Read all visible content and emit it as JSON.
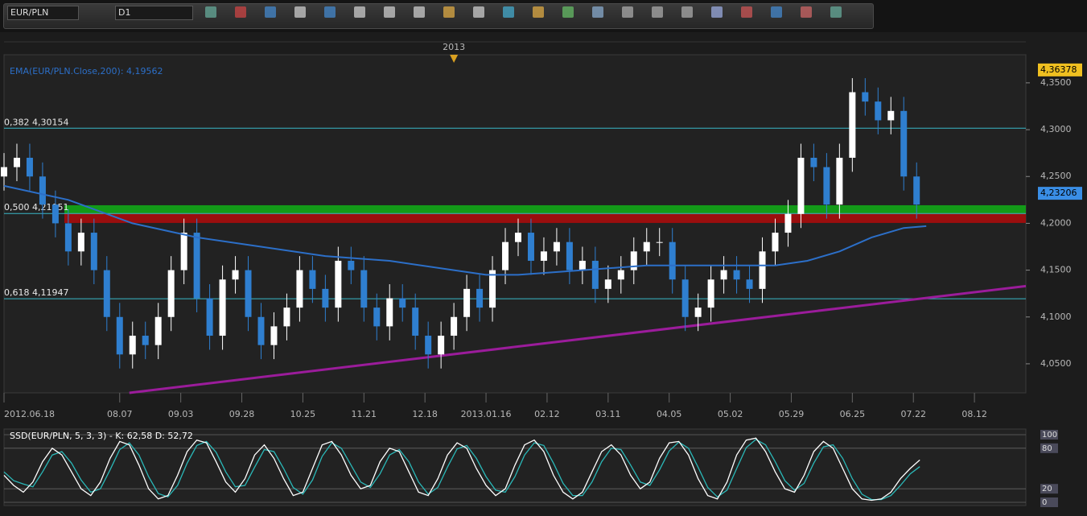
{
  "toolbar": {
    "symbol": "EUR/PLN",
    "timeframe": "D1"
  },
  "chart_data": [
    {
      "type": "candlestick",
      "x": [
        0,
        4,
        8,
        12,
        16,
        20,
        24,
        28,
        32,
        36,
        40,
        44,
        48,
        52,
        56,
        60,
        64,
        68,
        72,
        76,
        80,
        84,
        88,
        92,
        96,
        100,
        104,
        108,
        112,
        116,
        120,
        124,
        128,
        132,
        136,
        140,
        144,
        148,
        152,
        156,
        160,
        164,
        168,
        172,
        176,
        180,
        184,
        188,
        192,
        196,
        200,
        204,
        208,
        212,
        216,
        220,
        224,
        228,
        232,
        236,
        240,
        244,
        248,
        252,
        256,
        260,
        264,
        268,
        272,
        276,
        280,
        284
      ],
      "open": [
        4.25,
        4.26,
        4.27,
        4.25,
        4.22,
        4.2,
        4.17,
        4.19,
        4.15,
        4.1,
        4.06,
        4.08,
        4.07,
        4.1,
        4.15,
        4.19,
        4.12,
        4.08,
        4.14,
        4.15,
        4.1,
        4.07,
        4.09,
        4.11,
        4.15,
        4.13,
        4.11,
        4.16,
        4.15,
        4.11,
        4.09,
        4.12,
        4.11,
        4.08,
        4.06,
        4.08,
        4.1,
        4.13,
        4.11,
        4.15,
        4.18,
        4.19,
        4.16,
        4.17,
        4.18,
        4.15,
        4.16,
        4.13,
        4.14,
        4.15,
        4.17,
        4.18,
        4.18,
        4.14,
        4.1,
        4.11,
        4.14,
        4.15,
        4.14,
        4.13,
        4.17,
        4.19,
        4.21,
        4.27,
        4.26,
        4.22,
        4.27,
        4.34,
        4.33,
        4.31,
        4.32,
        4.25
      ],
      "high": [
        4.275,
        4.285,
        4.285,
        4.265,
        4.235,
        4.215,
        4.205,
        4.205,
        4.165,
        4.115,
        4.095,
        4.095,
        4.115,
        4.165,
        4.205,
        4.205,
        4.135,
        4.155,
        4.165,
        4.165,
        4.115,
        4.105,
        4.125,
        4.165,
        4.165,
        4.145,
        4.175,
        4.175,
        4.165,
        4.125,
        4.135,
        4.135,
        4.125,
        4.095,
        4.095,
        4.115,
        4.145,
        4.145,
        4.165,
        4.195,
        4.205,
        4.205,
        4.185,
        4.195,
        4.195,
        4.175,
        4.175,
        4.155,
        4.165,
        4.185,
        4.195,
        4.195,
        4.195,
        4.155,
        4.125,
        4.155,
        4.165,
        4.165,
        4.155,
        4.185,
        4.205,
        4.225,
        4.285,
        4.285,
        4.275,
        4.285,
        4.355,
        4.355,
        4.345,
        4.335,
        4.335,
        4.265
      ],
      "low": [
        4.235,
        4.245,
        4.235,
        4.205,
        4.185,
        4.155,
        4.155,
        4.135,
        4.085,
        4.045,
        4.045,
        4.055,
        4.055,
        4.085,
        4.135,
        4.105,
        4.065,
        4.065,
        4.125,
        4.085,
        4.055,
        4.055,
        4.075,
        4.095,
        4.115,
        4.095,
        4.095,
        4.135,
        4.095,
        4.075,
        4.075,
        4.095,
        4.065,
        4.045,
        4.045,
        4.065,
        4.085,
        4.095,
        4.095,
        4.135,
        4.165,
        4.145,
        4.145,
        4.155,
        4.135,
        4.135,
        4.115,
        4.115,
        4.125,
        4.135,
        4.155,
        4.165,
        4.125,
        4.085,
        4.085,
        4.095,
        4.125,
        4.125,
        4.115,
        4.115,
        4.155,
        4.175,
        4.195,
        4.245,
        4.205,
        4.205,
        4.255,
        4.315,
        4.295,
        4.295,
        4.235,
        4.205
      ],
      "close": [
        4.26,
        4.27,
        4.25,
        4.22,
        4.2,
        4.17,
        4.19,
        4.15,
        4.1,
        4.06,
        4.08,
        4.07,
        4.1,
        4.15,
        4.19,
        4.12,
        4.08,
        4.14,
        4.15,
        4.1,
        4.07,
        4.09,
        4.11,
        4.15,
        4.13,
        4.11,
        4.16,
        4.15,
        4.11,
        4.09,
        4.12,
        4.11,
        4.08,
        4.06,
        4.08,
        4.1,
        4.13,
        4.11,
        4.15,
        4.18,
        4.19,
        4.16,
        4.17,
        4.18,
        4.15,
        4.16,
        4.13,
        4.14,
        4.15,
        4.17,
        4.18,
        4.18,
        4.14,
        4.1,
        4.11,
        4.14,
        4.15,
        4.14,
        4.13,
        4.17,
        4.19,
        4.21,
        4.27,
        4.26,
        4.22,
        4.27,
        4.34,
        4.33,
        4.31,
        4.32,
        4.25,
        4.22
      ],
      "up_color": "#ffffff",
      "down_color": "#2f7fd0",
      "xlim": [
        0,
        318
      ],
      "ylim": [
        4.019,
        4.38
      ],
      "xticks": [
        {
          "value": 0,
          "label": "2012.06.18"
        },
        {
          "value": 36,
          "label": "08.07"
        },
        {
          "value": 55,
          "label": "09.03"
        },
        {
          "value": 74,
          "label": "09.28"
        },
        {
          "value": 93,
          "label": "10.25"
        },
        {
          "value": 112,
          "label": "11.21"
        },
        {
          "value": 131,
          "label": "12.18"
        },
        {
          "value": 150,
          "label": "2013.01.16"
        },
        {
          "value": 169,
          "label": "02.12"
        },
        {
          "value": 188,
          "label": "03.11"
        },
        {
          "value": 207,
          "label": "04.05"
        },
        {
          "value": 226,
          "label": "05.02"
        },
        {
          "value": 245,
          "label": "05.29"
        },
        {
          "value": 264,
          "label": "06.25"
        },
        {
          "value": 283,
          "label": "07.22"
        },
        {
          "value": 302,
          "label": "08.12"
        }
      ],
      "yticks": [
        {
          "value": 4.05,
          "label": "4,0500"
        },
        {
          "value": 4.1,
          "label": "4,1000"
        },
        {
          "value": 4.15,
          "label": "4,1500"
        },
        {
          "value": 4.2,
          "label": "4,2000"
        },
        {
          "value": 4.25,
          "label": "4,2500"
        },
        {
          "value": 4.3,
          "label": "4,3000"
        },
        {
          "value": 4.35,
          "label": "4,3500"
        }
      ],
      "top_marker": {
        "x": 140,
        "label": "2013"
      },
      "indicator": {
        "name": "EMA(EUR/PLN.Close,200): 4,19562",
        "color": "#2c6fc8",
        "x": [
          0,
          20,
          40,
          60,
          80,
          100,
          120,
          140,
          150,
          160,
          180,
          200,
          220,
          240,
          250,
          260,
          270,
          280,
          287
        ],
        "values": [
          4.24,
          4.225,
          4.2,
          4.185,
          4.175,
          4.165,
          4.16,
          4.15,
          4.145,
          4.145,
          4.15,
          4.155,
          4.155,
          4.155,
          4.16,
          4.17,
          4.185,
          4.195,
          4.197
        ]
      },
      "levels": [
        {
          "value": 4.30154,
          "label": "0,382 4,30154"
        },
        {
          "value": 4.21051,
          "label": "0,500 4,21051"
        },
        {
          "value": 4.11947,
          "label": "0,618 4,11947"
        }
      ],
      "level_color": "#38b8c8",
      "zones": [
        {
          "from": 4.2107,
          "to": 4.2193,
          "color": "#139a18"
        },
        {
          "from": 4.2004,
          "to": 4.2107,
          "color": "#9a0e0e"
        }
      ],
      "trendline": {
        "x": [
          39,
          318
        ],
        "y": [
          4.019,
          4.133
        ],
        "color": "#9b1c9b"
      },
      "price_labels": [
        {
          "value": 4.36378,
          "label": "4,36378",
          "color": "#f0c020"
        },
        {
          "value": 4.23206,
          "label": "4,23206",
          "color": "#3a8ee6"
        }
      ]
    },
    {
      "type": "line",
      "title": "SSD(EUR/PLN, 5, 3, 3) -  K: 62,58  D: 52,72",
      "xlim": [
        0,
        318
      ],
      "ylim": [
        0,
        100
      ],
      "yticks": [
        0,
        20,
        80,
        100
      ],
      "x": [
        0,
        3,
        6,
        9,
        12,
        15,
        18,
        21,
        24,
        27,
        30,
        33,
        36,
        39,
        42,
        45,
        48,
        51,
        54,
        57,
        60,
        63,
        66,
        69,
        72,
        75,
        78,
        81,
        84,
        87,
        90,
        93,
        96,
        99,
        102,
        105,
        108,
        111,
        114,
        117,
        120,
        123,
        126,
        129,
        132,
        135,
        138,
        141,
        144,
        147,
        150,
        153,
        156,
        159,
        162,
        165,
        168,
        171,
        174,
        177,
        180,
        183,
        186,
        189,
        192,
        195,
        198,
        201,
        204,
        207,
        210,
        213,
        216,
        219,
        222,
        225,
        228,
        231,
        234,
        237,
        240,
        243,
        246,
        249,
        252,
        255,
        258,
        261,
        264,
        267,
        270,
        273,
        276,
        279,
        282,
        285
      ],
      "series": [
        {
          "name": "K",
          "color": "#ffffff",
          "values": [
            40,
            25,
            15,
            30,
            60,
            80,
            70,
            45,
            20,
            10,
            30,
            65,
            90,
            85,
            55,
            20,
            5,
            10,
            40,
            75,
            92,
            88,
            60,
            30,
            15,
            35,
            70,
            85,
            65,
            35,
            10,
            15,
            50,
            85,
            90,
            70,
            40,
            20,
            25,
            60,
            80,
            75,
            45,
            15,
            10,
            35,
            70,
            88,
            80,
            50,
            25,
            10,
            20,
            55,
            85,
            92,
            75,
            40,
            15,
            5,
            15,
            45,
            75,
            85,
            70,
            40,
            20,
            30,
            65,
            88,
            90,
            70,
            35,
            10,
            5,
            30,
            70,
            92,
            95,
            75,
            45,
            20,
            15,
            40,
            75,
            90,
            80,
            50,
            20,
            5,
            3,
            5,
            15,
            35,
            50,
            62.58
          ]
        },
        {
          "name": "D",
          "color": "#2ab8b8",
          "values": [
            45,
            32,
            27,
            23,
            45,
            70,
            75,
            58,
            33,
            15,
            20,
            48,
            78,
            88,
            70,
            38,
            13,
            8,
            25,
            58,
            84,
            90,
            74,
            45,
            23,
            25,
            52,
            78,
            75,
            50,
            22,
            12,
            33,
            68,
            88,
            80,
            55,
            30,
            22,
            42,
            70,
            78,
            60,
            30,
            12,
            22,
            52,
            79,
            84,
            65,
            38,
            18,
            15,
            38,
            70,
            88,
            84,
            58,
            28,
            10,
            10,
            30,
            60,
            80,
            78,
            55,
            30,
            25,
            48,
            76,
            89,
            80,
            52,
            22,
            8,
            18,
            50,
            81,
            93,
            85,
            60,
            32,
            18,
            28,
            58,
            82,
            85,
            65,
            35,
            12,
            4,
            4,
            10,
            25,
            42,
            52.72
          ]
        }
      ]
    }
  ]
}
